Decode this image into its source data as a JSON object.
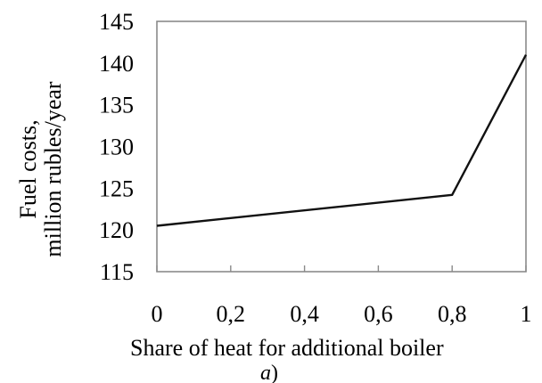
{
  "chart_data": {
    "type": "line",
    "title": "",
    "xlabel": "Share of heat for additional  boiler",
    "ylabel_line1": "Fuel costs,",
    "ylabel_line2": "million  rubles/year",
    "x_ticks": [
      "0",
      "0,2",
      "0,4",
      "0,6",
      "0,8",
      "1"
    ],
    "y_ticks": [
      "115",
      "120",
      "125",
      "130",
      "135",
      "140",
      "145"
    ],
    "xlim": [
      0,
      1
    ],
    "ylim": [
      115,
      145
    ],
    "grid": false,
    "series": [
      {
        "x": [
          0,
          0.8,
          1
        ],
        "y": [
          120.5,
          124.2,
          141
        ]
      }
    ]
  },
  "caption": {
    "letter": "a",
    "paren": ")"
  }
}
